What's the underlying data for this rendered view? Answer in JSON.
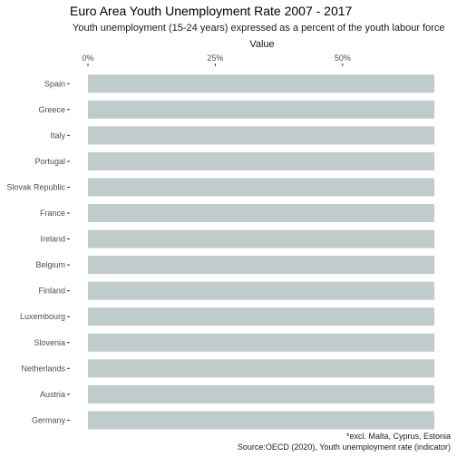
{
  "chart_data": {
    "type": "bar",
    "orientation": "horizontal",
    "title": "Euro Area Youth Unemployment Rate 2007 - 2017",
    "subtitle": "Youth unemployment (15-24 years) expressed as a percent of the youth labour force",
    "xlabel": "Value",
    "x_axis_position": "top",
    "x_ticks": [
      0,
      25,
      50
    ],
    "x_tick_labels": [
      "0%",
      "25%",
      "50%"
    ],
    "xlim": [
      0,
      68
    ],
    "grid": false,
    "legend": "none",
    "categories": [
      "Spain",
      "Greece",
      "Italy",
      "Portugal",
      "Slovak Republic",
      "France",
      "Ireland",
      "Belgium",
      "Finland",
      "Luxembourg",
      "Slovenia",
      "Netherlands",
      "Austria",
      "Germany"
    ],
    "values": [
      68,
      68,
      68,
      68,
      68,
      68,
      68,
      68,
      68,
      68,
      68,
      68,
      68,
      68
    ],
    "bar_color": "#c0cbcb",
    "caption_lines": [
      "*excl. Malta, Cyprus, Estonia",
      "Source:OECD (2020), Youth unemployment rate (indicator)"
    ]
  }
}
